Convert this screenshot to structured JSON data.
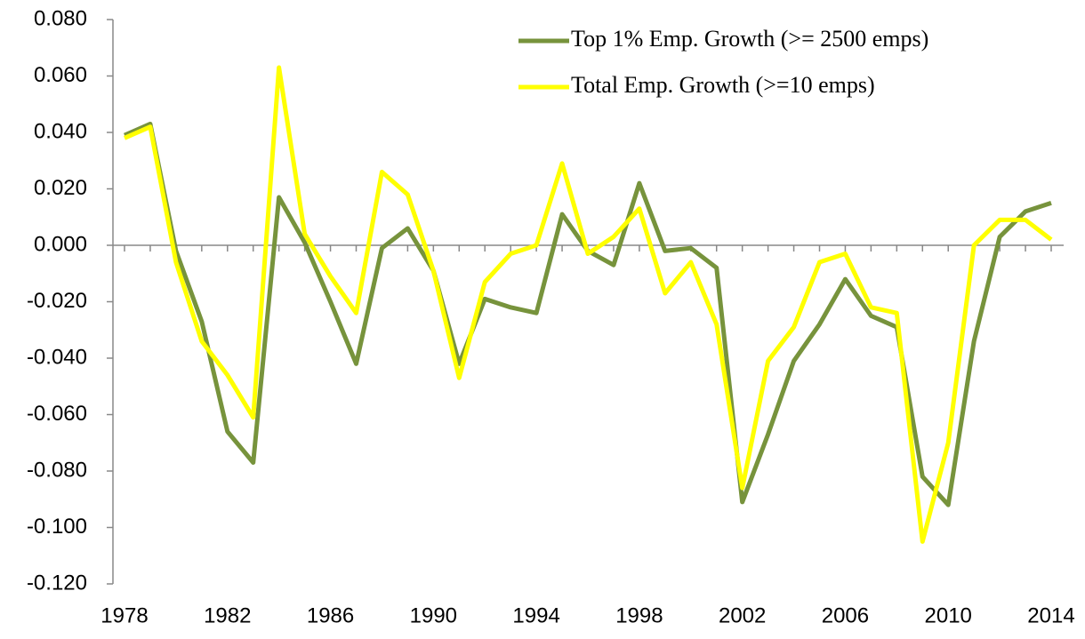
{
  "chart_data": {
    "type": "line",
    "x": [
      1978,
      1979,
      1980,
      1981,
      1982,
      1983,
      1984,
      1985,
      1986,
      1987,
      1988,
      1989,
      1990,
      1991,
      1992,
      1993,
      1994,
      1995,
      1996,
      1997,
      1998,
      1999,
      2000,
      2001,
      2002,
      2003,
      2004,
      2005,
      2006,
      2007,
      2008,
      2009,
      2010,
      2011,
      2012,
      2013,
      2014
    ],
    "series": [
      {
        "name": "Top 1% Emp. Growth (>= 2500 emps)",
        "color": "#77933c",
        "values": [
          0.039,
          0.043,
          -0.002,
          -0.027,
          -0.066,
          -0.077,
          0.017,
          0.001,
          -0.02,
          -0.042,
          -0.001,
          0.006,
          -0.009,
          -0.042,
          -0.019,
          -0.022,
          -0.024,
          0.011,
          -0.002,
          -0.007,
          0.022,
          -0.002,
          -0.001,
          -0.008,
          -0.091,
          -0.067,
          -0.041,
          -0.028,
          -0.012,
          -0.025,
          -0.029,
          -0.082,
          -0.092,
          -0.034,
          0.003,
          0.012,
          0.015
        ]
      },
      {
        "name": "Total Emp. Growth (>=10 emps)",
        "color": "#ffff00",
        "values": [
          0.038,
          0.042,
          -0.006,
          -0.034,
          -0.046,
          -0.061,
          0.063,
          0.004,
          -0.011,
          -0.024,
          0.026,
          0.018,
          -0.009,
          -0.047,
          -0.013,
          -0.003,
          0.0,
          0.029,
          -0.003,
          0.003,
          0.013,
          -0.017,
          -0.006,
          -0.028,
          -0.086,
          -0.041,
          -0.029,
          -0.006,
          -0.003,
          -0.022,
          -0.024,
          -0.105,
          -0.07,
          0.0,
          0.009,
          0.009,
          0.002
        ]
      }
    ],
    "xlim": [
      1978,
      2014
    ],
    "xticks": [
      1978,
      1982,
      1986,
      1990,
      1994,
      1998,
      2002,
      2006,
      2010,
      2014
    ],
    "ylim": [
      -0.12,
      0.08
    ],
    "yticks": [
      {
        "value": 0.08,
        "label": "0.080"
      },
      {
        "value": 0.06,
        "label": "0.060"
      },
      {
        "value": 0.04,
        "label": "0.040"
      },
      {
        "value": 0.02,
        "label": "0.020"
      },
      {
        "value": 0,
        "label": "0.000"
      },
      {
        "value": -0.02,
        "label": "-0.020"
      },
      {
        "value": -0.04,
        "label": "-0.040"
      },
      {
        "value": -0.06,
        "label": "-0.060"
      },
      {
        "value": -0.08,
        "label": "-0.080"
      },
      {
        "value": -0.1,
        "label": "-0.100"
      },
      {
        "value": -0.12,
        "label": "-0.120"
      }
    ],
    "legend": "top-right"
  }
}
